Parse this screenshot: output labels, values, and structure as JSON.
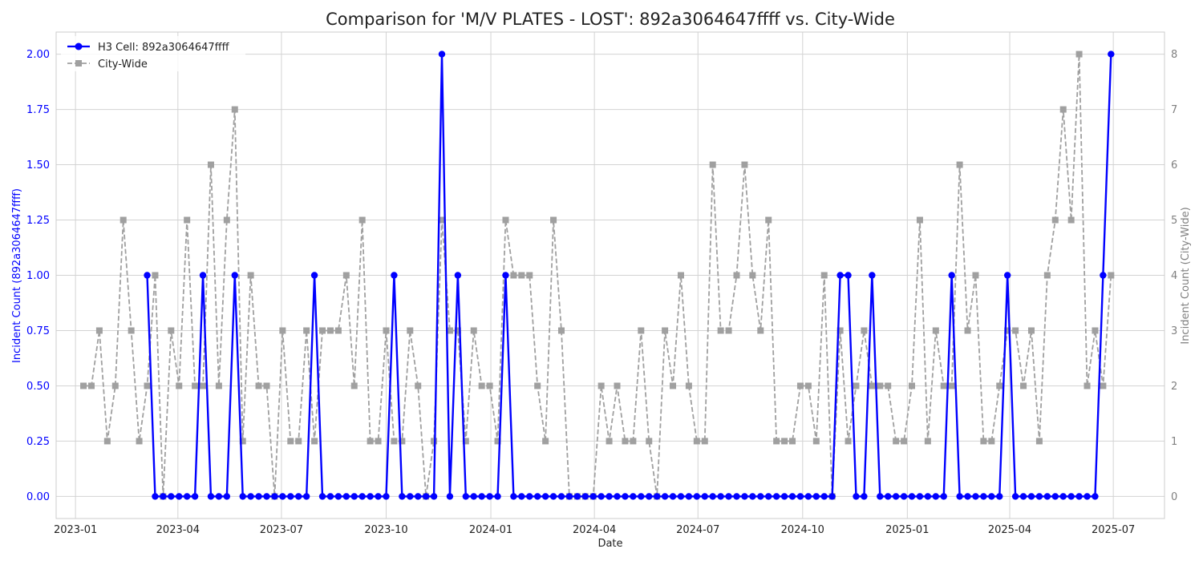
{
  "chart_data": {
    "type": "line",
    "title": "Comparison for 'M/V PLATES - LOST': 892a3064647ffff vs. City-Wide",
    "xlabel": "Date",
    "ylabel_left": "Incident Count (892a3064647ffff)",
    "ylabel_right": "Incident Count (City-Wide)",
    "ylim_left": [
      -0.1,
      2.1
    ],
    "ylim_right": [
      -0.4,
      8.4
    ],
    "yticks_left": [
      "0.00",
      "0.25",
      "0.50",
      "0.75",
      "1.00",
      "1.25",
      "1.50",
      "1.75",
      "2.00"
    ],
    "yticks_right": [
      "0",
      "1",
      "2",
      "3",
      "4",
      "5",
      "6",
      "7",
      "8"
    ],
    "xticks": [
      {
        "date": "2023-01-01",
        "label": "2023-01"
      },
      {
        "date": "2023-04-01",
        "label": "2023-04"
      },
      {
        "date": "2023-07-01",
        "label": "2023-07"
      },
      {
        "date": "2023-10-01",
        "label": "2023-10"
      },
      {
        "date": "2024-01-01",
        "label": "2024-01"
      },
      {
        "date": "2024-04-01",
        "label": "2024-04"
      },
      {
        "date": "2024-07-01",
        "label": "2024-07"
      },
      {
        "date": "2024-10-01",
        "label": "2024-10"
      },
      {
        "date": "2025-01-01",
        "label": "2025-01"
      },
      {
        "date": "2025-04-01",
        "label": "2025-04"
      },
      {
        "date": "2025-07-01",
        "label": "2025-07"
      }
    ],
    "xlim": [
      "2022-12-15",
      "2025-08-15"
    ],
    "grid": true,
    "legend_position": "top-left",
    "series": [
      {
        "name": "H3 Cell: 892a3064647ffff",
        "axis": "left",
        "color": "#0000ff",
        "style": "solid",
        "marker": "circle",
        "points": [
          [
            "2023-03-05",
            1
          ],
          [
            "2023-03-12",
            0
          ],
          [
            "2023-03-19",
            0
          ],
          [
            "2023-03-26",
            0
          ],
          [
            "2023-04-02",
            0
          ],
          [
            "2023-04-09",
            0
          ],
          [
            "2023-04-16",
            0
          ],
          [
            "2023-04-23",
            1
          ],
          [
            "2023-04-30",
            0
          ],
          [
            "2023-05-07",
            0
          ],
          [
            "2023-05-14",
            0
          ],
          [
            "2023-05-21",
            1
          ],
          [
            "2023-05-28",
            0
          ],
          [
            "2023-06-04",
            0
          ],
          [
            "2023-06-11",
            0
          ],
          [
            "2023-06-18",
            0
          ],
          [
            "2023-06-25",
            0
          ],
          [
            "2023-07-02",
            0
          ],
          [
            "2023-07-09",
            0
          ],
          [
            "2023-07-16",
            0
          ],
          [
            "2023-07-23",
            0
          ],
          [
            "2023-07-30",
            1
          ],
          [
            "2023-08-06",
            0
          ],
          [
            "2023-08-13",
            0
          ],
          [
            "2023-08-20",
            0
          ],
          [
            "2023-08-27",
            0
          ],
          [
            "2023-09-03",
            0
          ],
          [
            "2023-09-10",
            0
          ],
          [
            "2023-09-17",
            0
          ],
          [
            "2023-09-24",
            0
          ],
          [
            "2023-10-01",
            0
          ],
          [
            "2023-10-08",
            1
          ],
          [
            "2023-10-15",
            0
          ],
          [
            "2023-10-22",
            0
          ],
          [
            "2023-10-29",
            0
          ],
          [
            "2023-11-05",
            0
          ],
          [
            "2023-11-12",
            0
          ],
          [
            "2023-11-19",
            2
          ],
          [
            "2023-11-26",
            0
          ],
          [
            "2023-12-03",
            1
          ],
          [
            "2023-12-10",
            0
          ],
          [
            "2023-12-17",
            0
          ],
          [
            "2023-12-24",
            0
          ],
          [
            "2023-12-31",
            0
          ],
          [
            "2024-01-07",
            0
          ],
          [
            "2024-01-14",
            1
          ],
          [
            "2024-01-21",
            0
          ],
          [
            "2024-01-28",
            0
          ],
          [
            "2024-02-04",
            0
          ],
          [
            "2024-02-11",
            0
          ],
          [
            "2024-02-18",
            0
          ],
          [
            "2024-02-25",
            0
          ],
          [
            "2024-03-03",
            0
          ],
          [
            "2024-03-10",
            0
          ],
          [
            "2024-03-17",
            0
          ],
          [
            "2024-03-24",
            0
          ],
          [
            "2024-03-31",
            0
          ],
          [
            "2024-04-07",
            0
          ],
          [
            "2024-04-14",
            0
          ],
          [
            "2024-04-21",
            0
          ],
          [
            "2024-04-28",
            0
          ],
          [
            "2024-05-05",
            0
          ],
          [
            "2024-05-12",
            0
          ],
          [
            "2024-05-19",
            0
          ],
          [
            "2024-05-26",
            0
          ],
          [
            "2024-06-02",
            0
          ],
          [
            "2024-06-09",
            0
          ],
          [
            "2024-06-16",
            0
          ],
          [
            "2024-06-23",
            0
          ],
          [
            "2024-06-30",
            0
          ],
          [
            "2024-07-07",
            0
          ],
          [
            "2024-07-14",
            0
          ],
          [
            "2024-07-21",
            0
          ],
          [
            "2024-07-28",
            0
          ],
          [
            "2024-08-04",
            0
          ],
          [
            "2024-08-11",
            0
          ],
          [
            "2024-08-18",
            0
          ],
          [
            "2024-08-25",
            0
          ],
          [
            "2024-09-01",
            0
          ],
          [
            "2024-09-08",
            0
          ],
          [
            "2024-09-15",
            0
          ],
          [
            "2024-09-22",
            0
          ],
          [
            "2024-09-29",
            0
          ],
          [
            "2024-10-06",
            0
          ],
          [
            "2024-10-13",
            0
          ],
          [
            "2024-10-20",
            0
          ],
          [
            "2024-10-27",
            0
          ],
          [
            "2024-11-03",
            1
          ],
          [
            "2024-11-10",
            1
          ],
          [
            "2024-11-17",
            0
          ],
          [
            "2024-11-24",
            0
          ],
          [
            "2024-12-01",
            1
          ],
          [
            "2024-12-08",
            0
          ],
          [
            "2024-12-15",
            0
          ],
          [
            "2024-12-22",
            0
          ],
          [
            "2024-12-29",
            0
          ],
          [
            "2025-01-05",
            0
          ],
          [
            "2025-01-12",
            0
          ],
          [
            "2025-01-19",
            0
          ],
          [
            "2025-01-26",
            0
          ],
          [
            "2025-02-02",
            0
          ],
          [
            "2025-02-09",
            1
          ],
          [
            "2025-02-16",
            0
          ],
          [
            "2025-02-23",
            0
          ],
          [
            "2025-03-02",
            0
          ],
          [
            "2025-03-09",
            0
          ],
          [
            "2025-03-16",
            0
          ],
          [
            "2025-03-23",
            0
          ],
          [
            "2025-03-30",
            1
          ],
          [
            "2025-04-06",
            0
          ],
          [
            "2025-04-13",
            0
          ],
          [
            "2025-04-20",
            0
          ],
          [
            "2025-04-27",
            0
          ],
          [
            "2025-05-04",
            0
          ],
          [
            "2025-05-11",
            0
          ],
          [
            "2025-05-18",
            0
          ],
          [
            "2025-05-25",
            0
          ],
          [
            "2025-06-01",
            0
          ],
          [
            "2025-06-08",
            0
          ],
          [
            "2025-06-15",
            0
          ],
          [
            "2025-06-22",
            1
          ],
          [
            "2025-06-29",
            2
          ]
        ]
      },
      {
        "name": "City-Wide",
        "axis": "right",
        "color": "#a0a0a0",
        "style": "dashed",
        "marker": "square",
        "points": [
          [
            "2023-01-08",
            2
          ],
          [
            "2023-01-15",
            2
          ],
          [
            "2023-01-22",
            3
          ],
          [
            "2023-01-29",
            1
          ],
          [
            "2023-02-05",
            2
          ],
          [
            "2023-02-12",
            5
          ],
          [
            "2023-02-19",
            3
          ],
          [
            "2023-02-26",
            1
          ],
          [
            "2023-03-05",
            2
          ],
          [
            "2023-03-12",
            4
          ],
          [
            "2023-03-19",
            0
          ],
          [
            "2023-03-26",
            3
          ],
          [
            "2023-04-02",
            2
          ],
          [
            "2023-04-09",
            5
          ],
          [
            "2023-04-16",
            2
          ],
          [
            "2023-04-23",
            2
          ],
          [
            "2023-04-30",
            6
          ],
          [
            "2023-05-07",
            2
          ],
          [
            "2023-05-14",
            5
          ],
          [
            "2023-05-21",
            7
          ],
          [
            "2023-05-28",
            1
          ],
          [
            "2023-06-04",
            4
          ],
          [
            "2023-06-11",
            2
          ],
          [
            "2023-06-18",
            2
          ],
          [
            "2023-06-25",
            0
          ],
          [
            "2023-07-02",
            3
          ],
          [
            "2023-07-09",
            1
          ],
          [
            "2023-07-16",
            1
          ],
          [
            "2023-07-23",
            3
          ],
          [
            "2023-07-30",
            1
          ],
          [
            "2023-08-06",
            3
          ],
          [
            "2023-08-13",
            3
          ],
          [
            "2023-08-20",
            3
          ],
          [
            "2023-08-27",
            4
          ],
          [
            "2023-09-03",
            2
          ],
          [
            "2023-09-10",
            5
          ],
          [
            "2023-09-17",
            1
          ],
          [
            "2023-09-24",
            1
          ],
          [
            "2023-10-01",
            3
          ],
          [
            "2023-10-08",
            1
          ],
          [
            "2023-10-15",
            1
          ],
          [
            "2023-10-22",
            3
          ],
          [
            "2023-10-29",
            2
          ],
          [
            "2023-11-05",
            0
          ],
          [
            "2023-11-12",
            1
          ],
          [
            "2023-11-19",
            5
          ],
          [
            "2023-11-26",
            3
          ],
          [
            "2023-12-03",
            3
          ],
          [
            "2023-12-10",
            1
          ],
          [
            "2023-12-17",
            3
          ],
          [
            "2023-12-24",
            2
          ],
          [
            "2023-12-31",
            2
          ],
          [
            "2024-01-07",
            1
          ],
          [
            "2024-01-14",
            5
          ],
          [
            "2024-01-21",
            4
          ],
          [
            "2024-01-28",
            4
          ],
          [
            "2024-02-04",
            4
          ],
          [
            "2024-02-11",
            2
          ],
          [
            "2024-02-18",
            1
          ],
          [
            "2024-02-25",
            5
          ],
          [
            "2024-03-03",
            3
          ],
          [
            "2024-03-10",
            0
          ],
          [
            "2024-03-17",
            0
          ],
          [
            "2024-03-24",
            0
          ],
          [
            "2024-03-31",
            0
          ],
          [
            "2024-04-07",
            2
          ],
          [
            "2024-04-14",
            1
          ],
          [
            "2024-04-21",
            2
          ],
          [
            "2024-04-28",
            1
          ],
          [
            "2024-05-05",
            1
          ],
          [
            "2024-05-12",
            3
          ],
          [
            "2024-05-19",
            1
          ],
          [
            "2024-05-26",
            0
          ],
          [
            "2024-06-02",
            3
          ],
          [
            "2024-06-09",
            2
          ],
          [
            "2024-06-16",
            4
          ],
          [
            "2024-06-23",
            2
          ],
          [
            "2024-06-30",
            1
          ],
          [
            "2024-07-07",
            1
          ],
          [
            "2024-07-14",
            6
          ],
          [
            "2024-07-21",
            3
          ],
          [
            "2024-07-28",
            3
          ],
          [
            "2024-08-04",
            4
          ],
          [
            "2024-08-11",
            6
          ],
          [
            "2024-08-18",
            4
          ],
          [
            "2024-08-25",
            3
          ],
          [
            "2024-09-01",
            5
          ],
          [
            "2024-09-08",
            1
          ],
          [
            "2024-09-15",
            1
          ],
          [
            "2024-09-22",
            1
          ],
          [
            "2024-09-29",
            2
          ],
          [
            "2024-10-06",
            2
          ],
          [
            "2024-10-13",
            1
          ],
          [
            "2024-10-20",
            4
          ],
          [
            "2024-10-27",
            0
          ],
          [
            "2024-11-03",
            3
          ],
          [
            "2024-11-10",
            1
          ],
          [
            "2024-11-17",
            2
          ],
          [
            "2024-11-24",
            3
          ],
          [
            "2024-12-01",
            2
          ],
          [
            "2024-12-08",
            2
          ],
          [
            "2024-12-15",
            2
          ],
          [
            "2024-12-22",
            1
          ],
          [
            "2024-12-29",
            1
          ],
          [
            "2025-01-05",
            2
          ],
          [
            "2025-01-12",
            5
          ],
          [
            "2025-01-19",
            1
          ],
          [
            "2025-01-26",
            3
          ],
          [
            "2025-02-02",
            2
          ],
          [
            "2025-02-09",
            2
          ],
          [
            "2025-02-16",
            6
          ],
          [
            "2025-02-23",
            3
          ],
          [
            "2025-03-02",
            4
          ],
          [
            "2025-03-09",
            1
          ],
          [
            "2025-03-16",
            1
          ],
          [
            "2025-03-23",
            2
          ],
          [
            "2025-03-30",
            3
          ],
          [
            "2025-04-06",
            3
          ],
          [
            "2025-04-13",
            2
          ],
          [
            "2025-04-20",
            3
          ],
          [
            "2025-04-27",
            1
          ],
          [
            "2025-05-04",
            4
          ],
          [
            "2025-05-11",
            5
          ],
          [
            "2025-05-18",
            7
          ],
          [
            "2025-05-25",
            5
          ],
          [
            "2025-06-01",
            8
          ],
          [
            "2025-06-08",
            2
          ],
          [
            "2025-06-15",
            3
          ],
          [
            "2025-06-22",
            2
          ],
          [
            "2025-06-29",
            4
          ]
        ]
      }
    ]
  }
}
